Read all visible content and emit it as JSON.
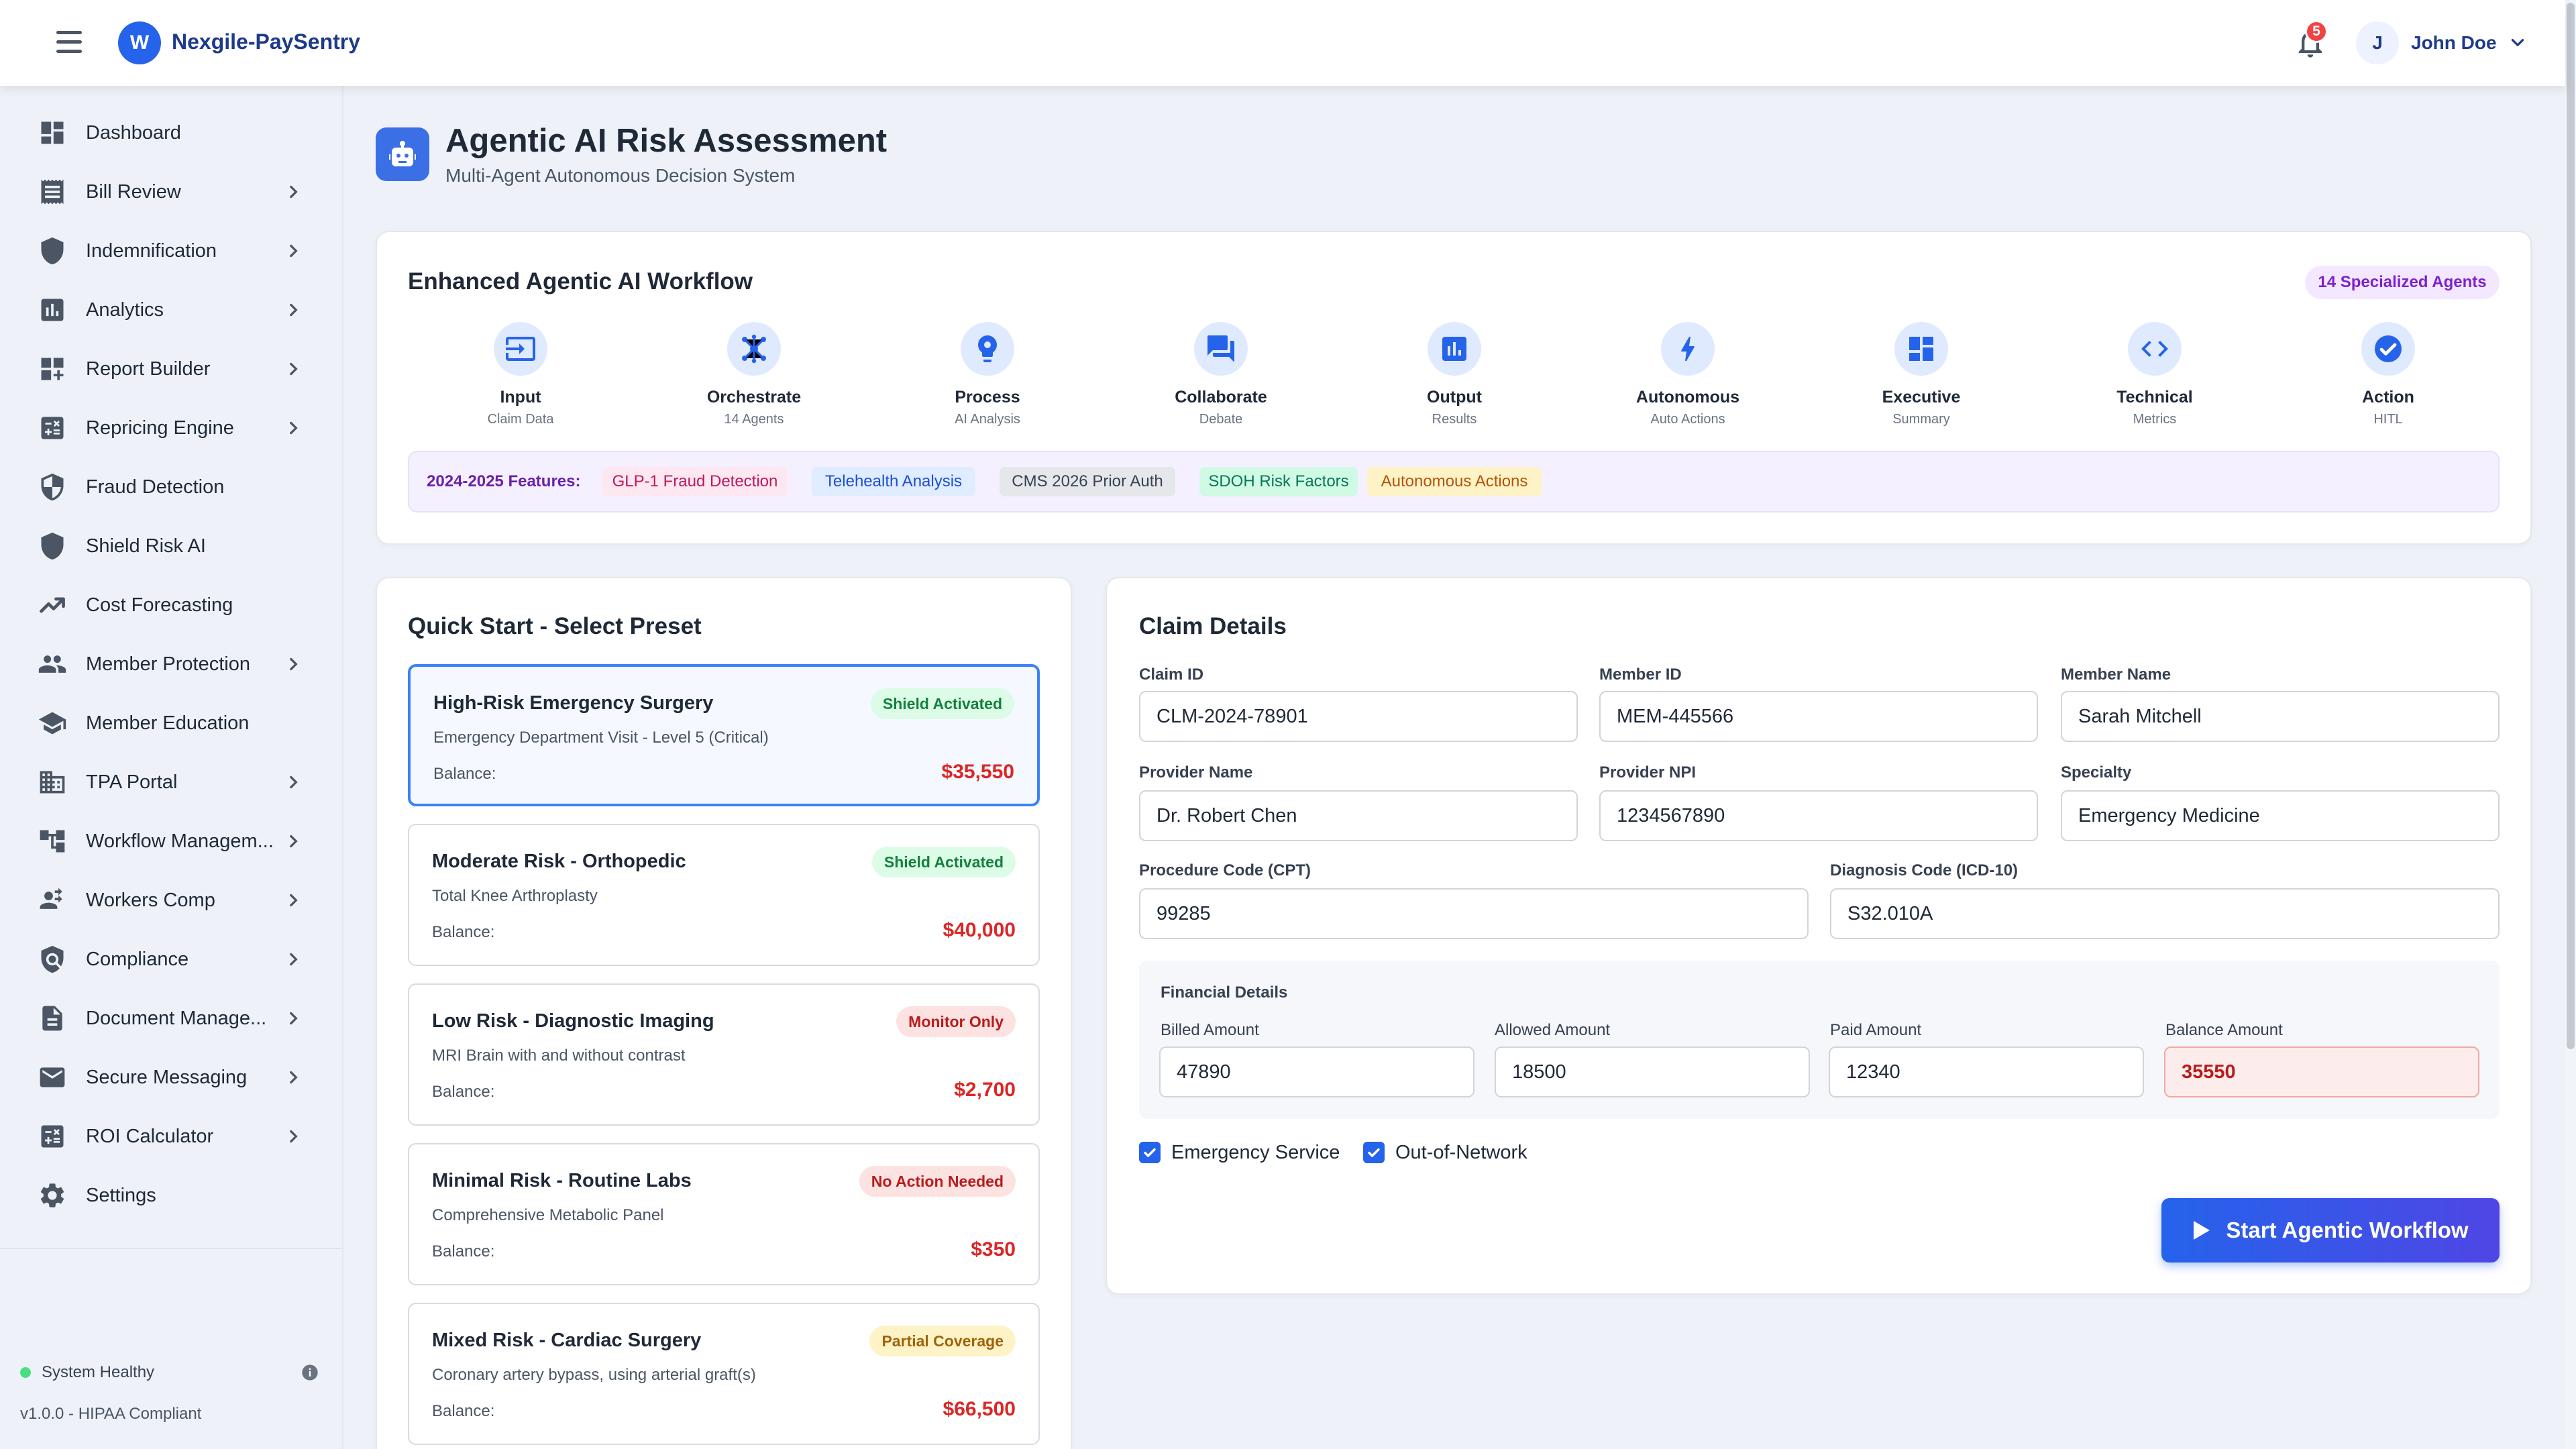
{
  "app": {
    "logo_letter": "W",
    "title": "Nexgile-PaySentry",
    "notifications_count": "5",
    "user_initial": "J",
    "user_name": "John Doe"
  },
  "sidebar": {
    "items": [
      {
        "label": "Dashboard",
        "icon": "dashboard-icon"
      },
      {
        "label": "Bill Review",
        "icon": "receipt-icon"
      },
      {
        "label": "Indemnification",
        "icon": "shield-icon"
      },
      {
        "label": "Analytics",
        "icon": "analytics-icon"
      },
      {
        "label": "Report Builder",
        "icon": "dashboard-customize-icon"
      },
      {
        "label": "Repricing Engine",
        "icon": "calculator-icon"
      },
      {
        "label": "Fraud Detection",
        "icon": "shield-half-icon"
      },
      {
        "label": "Shield Risk AI",
        "icon": "shield-icon"
      },
      {
        "label": "Cost Forecasting",
        "icon": "trending-icon"
      },
      {
        "label": "Member Protection",
        "icon": "people-icon"
      },
      {
        "label": "Member Education",
        "icon": "school-icon"
      },
      {
        "label": "TPA Portal",
        "icon": "building-icon"
      },
      {
        "label": "Workflow Managem...",
        "icon": "workflow-icon"
      },
      {
        "label": "Workers Comp",
        "icon": "worker-icon"
      },
      {
        "label": "Compliance",
        "icon": "policy-icon"
      },
      {
        "label": "Document Manage...",
        "icon": "document-icon"
      },
      {
        "label": "Secure Messaging",
        "icon": "mail-icon"
      },
      {
        "label": "ROI Calculator",
        "icon": "calculator-icon"
      },
      {
        "label": "Settings",
        "icon": "gear-icon"
      }
    ],
    "status": "System Healthy",
    "version": "v1.0.0 - HIPAA Compliant"
  },
  "page": {
    "title": "Agentic AI Risk Assessment",
    "subtitle": "Multi-Agent Autonomous Decision System"
  },
  "workflow": {
    "title": "Enhanced Agentic AI Workflow",
    "badge": "14 Specialized Agents",
    "steps": [
      {
        "label": "Input",
        "sub": "Claim Data",
        "icon": "input-icon"
      },
      {
        "label": "Orchestrate",
        "sub": "14 Agents",
        "icon": "hub-icon"
      },
      {
        "label": "Process",
        "sub": "AI Analysis",
        "icon": "psychology-icon"
      },
      {
        "label": "Collaborate",
        "sub": "Debate",
        "icon": "forum-icon"
      },
      {
        "label": "Output",
        "sub": "Results",
        "icon": "chart-icon"
      },
      {
        "label": "Autonomous",
        "sub": "Auto Actions",
        "icon": "bolt-icon"
      },
      {
        "label": "Executive",
        "sub": "Summary",
        "icon": "dashboard-icon"
      },
      {
        "label": "Technical",
        "sub": "Metrics",
        "icon": "code-icon"
      },
      {
        "label": "Action",
        "sub": "HITL",
        "icon": "check-circle-icon"
      }
    ],
    "features_label": "2024-2025 Features:",
    "features": [
      {
        "label": "GLP-1 Fraud Detection",
        "bg": "#fde8f1",
        "fg": "#be185d"
      },
      {
        "label": "Telehealth Analysis",
        "bg": "#e0ecff",
        "fg": "#1d4ed8"
      },
      {
        "label": "CMS 2026 Prior Auth",
        "bg": "#e5e7eb",
        "fg": "#374151"
      },
      {
        "label": "SDOH Risk Factors",
        "bg": "#d1fae5",
        "fg": "#047857"
      },
      {
        "label": "Autonomous Actions",
        "bg": "#fef3c7",
        "fg": "#b45309"
      }
    ]
  },
  "quick_start": {
    "title": "Quick Start - Select Preset",
    "balance_label": "Balance:",
    "presets": [
      {
        "title": "High-Risk Emergency Surgery",
        "desc": "Emergency Department Visit - Level 5 (Critical)",
        "balance": "$35,550",
        "badge": "Shield Activated",
        "badge_bg": "#dcfce7",
        "badge_fg": "#15803d"
      },
      {
        "title": "Moderate Risk - Orthopedic",
        "desc": "Total Knee Arthroplasty",
        "balance": "$40,000",
        "badge": "Shield Activated",
        "badge_bg": "#dcfce7",
        "badge_fg": "#15803d"
      },
      {
        "title": "Low Risk - Diagnostic Imaging",
        "desc": "MRI Brain with and without contrast",
        "balance": "$2,700",
        "badge": "Monitor Only",
        "badge_bg": "#fde2e2",
        "badge_fg": "#b91c1c"
      },
      {
        "title": "Minimal Risk - Routine Labs",
        "desc": "Comprehensive Metabolic Panel",
        "balance": "$350",
        "badge": "No Action Needed",
        "badge_bg": "#fde2e2",
        "badge_fg": "#b91c1c"
      },
      {
        "title": "Mixed Risk - Cardiac Surgery",
        "desc": "Coronary artery bypass, using arterial graft(s)",
        "balance": "$66,500",
        "badge": "Partial Coverage",
        "badge_bg": "#fef3c7",
        "badge_fg": "#a16207"
      }
    ]
  },
  "claim": {
    "title": "Claim Details",
    "fields": {
      "claim_id": {
        "label": "Claim ID",
        "value": "CLM-2024-78901"
      },
      "member_id": {
        "label": "Member ID",
        "value": "MEM-445566"
      },
      "member_name": {
        "label": "Member Name",
        "value": "Sarah Mitchell"
      },
      "provider_name": {
        "label": "Provider Name",
        "value": "Dr. Robert Chen"
      },
      "provider_npi": {
        "label": "Provider NPI",
        "value": "1234567890"
      },
      "specialty": {
        "label": "Specialty",
        "value": "Emergency Medicine"
      },
      "cpt": {
        "label": "Procedure Code (CPT)",
        "value": "99285"
      },
      "icd": {
        "label": "Diagnosis Code (ICD-10)",
        "value": "S32.010A"
      }
    },
    "financial": {
      "title": "Financial Details",
      "billed": {
        "label": "Billed Amount",
        "value": "47890"
      },
      "allowed": {
        "label": "Allowed Amount",
        "value": "18500"
      },
      "paid": {
        "label": "Paid Amount",
        "value": "12340"
      },
      "balance": {
        "label": "Balance Amount",
        "value": "35550"
      }
    },
    "emergency_label": "Emergency Service",
    "emergency_checked": true,
    "oon_label": "Out-of-Network",
    "oon_checked": true,
    "start_button": "Start Agentic Workflow"
  }
}
